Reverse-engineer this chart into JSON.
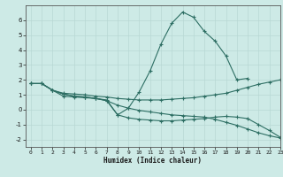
{
  "xlabel": "Humidex (Indice chaleur)",
  "bg_color": "#cdeae6",
  "grid_color": "#b8d8d4",
  "line_color": "#2d6e63",
  "xlim": [
    -0.5,
    23
  ],
  "ylim": [
    -2.5,
    7.0
  ],
  "yticks": [
    -2,
    -1,
    0,
    1,
    2,
    3,
    4,
    5,
    6
  ],
  "xticks": [
    0,
    1,
    2,
    3,
    4,
    5,
    6,
    7,
    8,
    9,
    10,
    11,
    12,
    13,
    14,
    15,
    16,
    17,
    18,
    19,
    20,
    21,
    22,
    23
  ],
  "line1_x": [
    0,
    1,
    2,
    3,
    4,
    5,
    6,
    7,
    8,
    9,
    10,
    11,
    12,
    13,
    14,
    15,
    16,
    17,
    18,
    19,
    20
  ],
  "line1_y": [
    1.75,
    1.75,
    1.3,
    0.9,
    0.85,
    0.8,
    0.75,
    0.65,
    -0.35,
    0.1,
    1.2,
    2.6,
    4.4,
    5.8,
    6.55,
    6.2,
    5.25,
    4.6,
    3.6,
    2.0,
    2.1
  ],
  "line2_x": [
    0,
    1,
    2,
    3,
    4,
    5,
    6,
    7,
    8,
    9,
    10,
    11,
    12,
    13,
    14,
    15,
    16,
    17,
    18,
    19,
    20,
    21,
    22,
    23
  ],
  "line2_y": [
    1.75,
    1.75,
    1.3,
    1.1,
    1.05,
    1.0,
    0.9,
    0.85,
    0.75,
    0.7,
    0.65,
    0.65,
    0.65,
    0.7,
    0.75,
    0.8,
    0.9,
    1.0,
    1.1,
    1.3,
    1.5,
    1.7,
    1.85,
    2.0
  ],
  "line3_x": [
    0,
    1,
    2,
    3,
    4,
    5,
    6,
    7,
    8,
    9,
    10,
    11,
    12,
    13,
    14,
    15,
    16,
    17,
    18,
    19,
    20,
    21,
    22,
    23
  ],
  "line3_y": [
    1.75,
    1.75,
    1.3,
    1.05,
    0.9,
    0.85,
    0.75,
    0.6,
    -0.35,
    -0.55,
    -0.65,
    -0.7,
    -0.75,
    -0.75,
    -0.7,
    -0.65,
    -0.6,
    -0.5,
    -0.45,
    -0.5,
    -0.6,
    -1.0,
    -1.4,
    -1.85
  ],
  "line4_x": [
    0,
    1,
    2,
    3,
    4,
    5,
    6,
    7,
    8,
    9,
    10,
    11,
    12,
    13,
    14,
    15,
    16,
    17,
    18,
    19,
    20,
    21,
    22,
    23
  ],
  "line4_y": [
    1.75,
    1.75,
    1.3,
    1.05,
    0.9,
    0.85,
    0.75,
    0.6,
    0.3,
    0.1,
    -0.05,
    -0.15,
    -0.25,
    -0.35,
    -0.4,
    -0.45,
    -0.5,
    -0.65,
    -0.85,
    -1.05,
    -1.3,
    -1.55,
    -1.75,
    -1.9
  ]
}
